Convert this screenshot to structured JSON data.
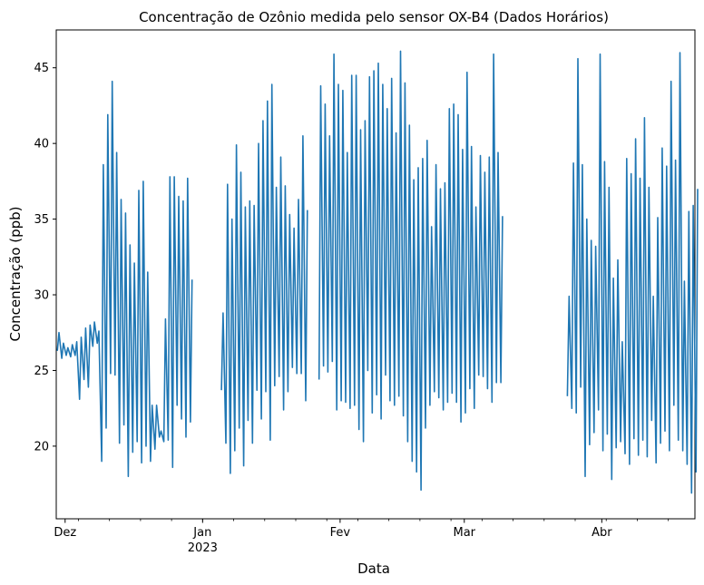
{
  "chart_data": {
    "type": "line",
    "title": "Concentração de Ozônio medida pelo sensor OX-B4 (Dados Horários)",
    "xlabel": "Data",
    "ylabel": "Concentração (ppb)",
    "xlim": [
      "2022-11-29",
      "2023-04-22"
    ],
    "ylim": [
      15.2,
      47.5
    ],
    "grid": false,
    "legend": "none",
    "yticks": [
      20,
      25,
      30,
      35,
      40,
      45
    ],
    "ytick_labels": [
      "20",
      "25",
      "30",
      "35",
      "40",
      "45"
    ],
    "xticks_major": [
      {
        "date": "2022-12-01",
        "label": "Dez",
        "sublabel": ""
      },
      {
        "date": "2023-01-01",
        "label": "Jan",
        "sublabel": "2023"
      },
      {
        "date": "2023-02-01",
        "label": "Fev",
        "sublabel": ""
      },
      {
        "date": "2023-03-01",
        "label": "Mar",
        "sublabel": ""
      },
      {
        "date": "2023-04-01",
        "label": "Abr",
        "sublabel": ""
      }
    ],
    "series_color": "#1f77b4",
    "series": [
      {
        "x": [
          "2022-11-29",
          "2022-11-30",
          "2022-12-01",
          "2022-12-02",
          "2022-12-03",
          "2022-12-04",
          "2022-12-05",
          "2022-12-06",
          "2022-12-07",
          "2022-12-08",
          "2022-12-09",
          "2022-12-10",
          "2022-12-11",
          "2022-12-12",
          "2022-12-13",
          "2022-12-14",
          "2022-12-15",
          "2022-12-16",
          "2022-12-17",
          "2022-12-18",
          "2022-12-19",
          "2022-12-20",
          "2022-12-21",
          "2022-12-22",
          "2022-12-23",
          "2022-12-24",
          "2022-12-25",
          "2022-12-26",
          "2022-12-27",
          "2022-12-28",
          "2022-12-29"
        ],
        "max": [
          27.5,
          26.8,
          26.5,
          26.7,
          26.9,
          27.2,
          27.8,
          28.0,
          28.2,
          27.6,
          38.6,
          41.9,
          44.1,
          39.4,
          36.3,
          35.4,
          33.3,
          32.1,
          36.9,
          37.5,
          31.5,
          22.7,
          22.7,
          21.0,
          28.4,
          37.8,
          37.8,
          36.5,
          36.2,
          37.7,
          31.0
        ],
        "min": [
          26.3,
          25.8,
          26.0,
          25.9,
          26.0,
          23.1,
          24.4,
          23.9,
          26.6,
          26.8,
          19.0,
          21.2,
          24.8,
          24.7,
          20.2,
          21.4,
          18.0,
          19.6,
          20.3,
          18.9,
          20.0,
          19.0,
          19.8,
          20.6,
          20.3,
          20.4,
          18.6,
          22.7,
          21.8,
          20.6,
          21.6
        ]
      },
      {
        "x": [
          "2023-01-05",
          "2023-01-06",
          "2023-01-07",
          "2023-01-08",
          "2023-01-09",
          "2023-01-10",
          "2023-01-11",
          "2023-01-12",
          "2023-01-13",
          "2023-01-14",
          "2023-01-15",
          "2023-01-16",
          "2023-01-17",
          "2023-01-18",
          "2023-01-19",
          "2023-01-20",
          "2023-01-21",
          "2023-01-22",
          "2023-01-23",
          "2023-01-24"
        ],
        "max": [
          28.8,
          37.3,
          35.0,
          39.9,
          38.1,
          35.8,
          36.2,
          35.9,
          40.0,
          41.5,
          42.8,
          43.9,
          37.1,
          39.1,
          37.2,
          35.3,
          34.4,
          36.3,
          40.5,
          35.6
        ],
        "min": [
          23.7,
          20.2,
          18.2,
          19.7,
          21.2,
          18.7,
          21.7,
          20.2,
          23.7,
          21.8,
          23.6,
          20.4,
          24.0,
          24.6,
          22.4,
          23.6,
          25.2,
          24.8,
          24.8,
          23.0
        ]
      },
      {
        "x": [
          "2023-01-27",
          "2023-01-28",
          "2023-01-29",
          "2023-01-30",
          "2023-01-31",
          "2023-02-01",
          "2023-02-02",
          "2023-02-03",
          "2023-02-04",
          "2023-02-05",
          "2023-02-06",
          "2023-02-07",
          "2023-02-08",
          "2023-02-09",
          "2023-02-10",
          "2023-02-11",
          "2023-02-12",
          "2023-02-13",
          "2023-02-14",
          "2023-02-15",
          "2023-02-16",
          "2023-02-17",
          "2023-02-18",
          "2023-02-19",
          "2023-02-20",
          "2023-02-21",
          "2023-02-22",
          "2023-02-23",
          "2023-02-24",
          "2023-02-25",
          "2023-02-26",
          "2023-02-27",
          "2023-02-28",
          "2023-03-01",
          "2023-03-02",
          "2023-03-03",
          "2023-03-04",
          "2023-03-05",
          "2023-03-06",
          "2023-03-07",
          "2023-03-08",
          "2023-03-09"
        ],
        "max": [
          43.8,
          42.6,
          40.5,
          45.9,
          43.9,
          43.5,
          39.4,
          44.5,
          44.5,
          40.9,
          41.5,
          44.4,
          44.8,
          45.3,
          43.9,
          42.3,
          44.3,
          40.7,
          46.1,
          44.0,
          41.2,
          37.6,
          38.4,
          39.0,
          40.2,
          34.5,
          38.6,
          37.0,
          37.4,
          42.3,
          42.6,
          41.9,
          39.6,
          44.7,
          39.8,
          35.8,
          39.2,
          38.1,
          39.1,
          45.9,
          39.4,
          35.2
        ],
        "min": [
          24.4,
          25.3,
          24.9,
          25.6,
          22.4,
          23.0,
          22.9,
          22.5,
          22.7,
          21.1,
          20.3,
          25.0,
          22.2,
          23.4,
          21.8,
          24.7,
          23.0,
          22.7,
          23.3,
          22.0,
          20.3,
          19.0,
          18.3,
          17.1,
          21.2,
          22.7,
          23.6,
          23.2,
          22.4,
          22.9,
          23.5,
          22.9,
          21.6,
          22.2,
          23.8,
          22.5,
          24.7,
          24.6,
          23.8,
          22.9,
          24.2,
          24.2
        ]
      },
      {
        "x": [
          "2023-03-24",
          "2023-03-25",
          "2023-03-26",
          "2023-03-27",
          "2023-03-28",
          "2023-03-29",
          "2023-03-30",
          "2023-03-31",
          "2023-04-01",
          "2023-04-02",
          "2023-04-03",
          "2023-04-04",
          "2023-04-05",
          "2023-04-06",
          "2023-04-07",
          "2023-04-08",
          "2023-04-09",
          "2023-04-10",
          "2023-04-11",
          "2023-04-12",
          "2023-04-13",
          "2023-04-14",
          "2023-04-15",
          "2023-04-16",
          "2023-04-17",
          "2023-04-18",
          "2023-04-19",
          "2023-04-20",
          "2023-04-21",
          "2023-04-22"
        ],
        "max": [
          29.9,
          38.7,
          45.6,
          38.6,
          35.0,
          33.6,
          33.2,
          45.9,
          38.8,
          37.1,
          31.1,
          32.3,
          26.9,
          39.0,
          38.0,
          40.3,
          37.7,
          41.7,
          37.1,
          29.9,
          35.1,
          39.7,
          38.5,
          44.1,
          38.9,
          46.0,
          30.9,
          35.5,
          35.9,
          37.0
        ],
        "min": [
          23.3,
          22.5,
          22.2,
          23.9,
          18.0,
          20.1,
          20.9,
          22.4,
          19.7,
          20.8,
          17.8,
          19.9,
          20.3,
          19.5,
          18.8,
          20.5,
          19.4,
          20.4,
          19.3,
          21.7,
          18.9,
          20.2,
          21.0,
          19.7,
          22.7,
          20.4,
          19.7,
          18.8,
          16.9,
          18.3
        ]
      }
    ]
  }
}
